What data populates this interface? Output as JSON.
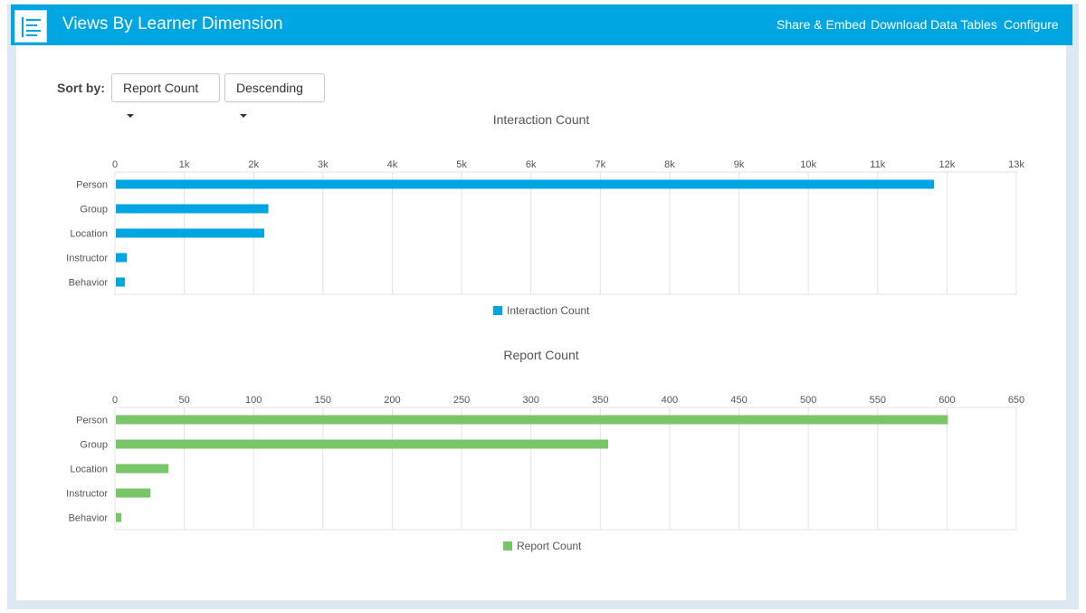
{
  "header": {
    "title": "Views By Learner Dimension",
    "links": [
      "Share & Embed",
      "Download Data Tables",
      "Configure"
    ],
    "icon": "list-icon",
    "bg_color": "#00a6e2"
  },
  "sort": {
    "label": "Sort by:",
    "field": "Report Count",
    "order": "Descending"
  },
  "chart_data": [
    {
      "type": "bar",
      "orientation": "horizontal",
      "title": "Interaction Count",
      "categories": [
        "Person",
        "Group",
        "Location",
        "Instructor",
        "Behavior"
      ],
      "series": [
        {
          "name": "Interaction Count",
          "values": [
            11800,
            2200,
            2140,
            160,
            130
          ],
          "color": "#00a6e2"
        }
      ],
      "xlim": [
        0,
        13000
      ],
      "ticks": [
        "0",
        "1k",
        "2k",
        "3k",
        "4k",
        "5k",
        "6k",
        "7k",
        "8k",
        "9k",
        "10k",
        "11k",
        "12k",
        "13k"
      ],
      "grid": true,
      "legend": "bottom"
    },
    {
      "type": "bar",
      "orientation": "horizontal",
      "title": "Report Count",
      "categories": [
        "Person",
        "Group",
        "Location",
        "Instructor",
        "Behavior"
      ],
      "series": [
        {
          "name": "Report Count",
          "values": [
            600,
            355,
            38,
            25,
            4
          ],
          "color": "#79c669"
        }
      ],
      "xlim": [
        0,
        650
      ],
      "ticks": [
        "0",
        "50",
        "100",
        "150",
        "200",
        "250",
        "300",
        "350",
        "400",
        "450",
        "500",
        "550",
        "600",
        "650"
      ],
      "grid": true,
      "legend": "bottom"
    }
  ]
}
